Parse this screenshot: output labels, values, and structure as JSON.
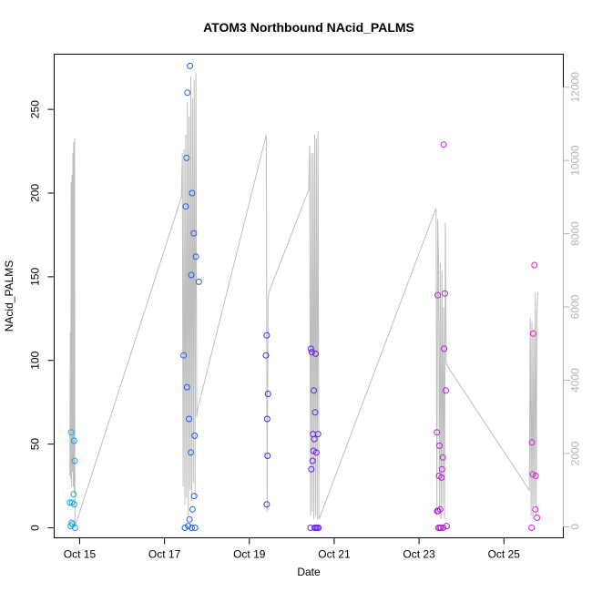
{
  "chart_data": {
    "type": "scatter",
    "title": "ATOM3 Northbound NAcid_PALMS",
    "xlabel": "Date",
    "ylabel": "NAcid_PALMS",
    "xlim": [
      14.4,
      26.4
    ],
    "ylim": [
      -6,
      283
    ],
    "y2lim": [
      -300,
      12900
    ],
    "x_ticks": [
      {
        "value": 15,
        "label": "Oct 15"
      },
      {
        "value": 17,
        "label": "Oct 17"
      },
      {
        "value": 19,
        "label": "Oct 19"
      },
      {
        "value": 21,
        "label": "Oct 21"
      },
      {
        "value": 23,
        "label": "Oct 23"
      },
      {
        "value": 25,
        "label": "Oct 25"
      }
    ],
    "y_ticks": [
      0,
      50,
      100,
      150,
      200,
      250
    ],
    "y2_ticks": [
      0,
      2000,
      4000,
      6000,
      8000,
      10000,
      12000
    ],
    "grid": false,
    "points": [
      {
        "x": 14.77,
        "y": 15,
        "color": "#1fa6e0"
      },
      {
        "x": 14.79,
        "y": 1,
        "color": "#1fa6e0"
      },
      {
        "x": 14.8,
        "y": 57,
        "color": "#1fa6e0"
      },
      {
        "x": 14.81,
        "y": 3,
        "color": "#1fa6e0"
      },
      {
        "x": 14.82,
        "y": 15,
        "color": "#1fa6e0"
      },
      {
        "x": 14.83,
        "y": 2,
        "color": "#1fa6e0"
      },
      {
        "x": 14.86,
        "y": 20,
        "color": "#1fa6e0"
      },
      {
        "x": 14.87,
        "y": 14,
        "color": "#1fa6e0"
      },
      {
        "x": 14.87,
        "y": 52,
        "color": "#1fa6e0"
      },
      {
        "x": 14.88,
        "y": 40,
        "color": "#1fa6e0"
      },
      {
        "x": 14.89,
        "y": 0,
        "color": "#1fa6e0"
      },
      {
        "x": 17.45,
        "y": 103,
        "color": "#1f5fe6"
      },
      {
        "x": 17.48,
        "y": 0,
        "color": "#1f5fe6"
      },
      {
        "x": 17.5,
        "y": 192,
        "color": "#1f5fe6"
      },
      {
        "x": 17.52,
        "y": 221,
        "color": "#1f5fe6"
      },
      {
        "x": 17.53,
        "y": 84,
        "color": "#1f5fe6"
      },
      {
        "x": 17.54,
        "y": 260,
        "color": "#1f5fe6"
      },
      {
        "x": 17.56,
        "y": 1,
        "color": "#1f5fe6"
      },
      {
        "x": 17.58,
        "y": 65,
        "color": "#1f5fe6"
      },
      {
        "x": 17.59,
        "y": 5,
        "color": "#1f5fe6"
      },
      {
        "x": 17.6,
        "y": 276,
        "color": "#1f5fe6"
      },
      {
        "x": 17.62,
        "y": 45,
        "color": "#1f5fe6"
      },
      {
        "x": 17.63,
        "y": 151,
        "color": "#1f5fe6"
      },
      {
        "x": 17.64,
        "y": 0,
        "color": "#1f5fe6"
      },
      {
        "x": 17.65,
        "y": 200,
        "color": "#1f5fe6"
      },
      {
        "x": 17.66,
        "y": 11,
        "color": "#1f5fe6"
      },
      {
        "x": 17.69,
        "y": 176,
        "color": "#1f5fe6"
      },
      {
        "x": 17.7,
        "y": 19,
        "color": "#1f5fe6"
      },
      {
        "x": 17.71,
        "y": 55,
        "color": "#1f5fe6"
      },
      {
        "x": 17.72,
        "y": 0,
        "color": "#1f5fe6"
      },
      {
        "x": 17.74,
        "y": 162,
        "color": "#1f5fe6"
      },
      {
        "x": 17.81,
        "y": 147,
        "color": "#1f5fe6"
      },
      {
        "x": 19.39,
        "y": 103,
        "color": "#3a2ee0"
      },
      {
        "x": 19.41,
        "y": 115,
        "color": "#3a2ee0"
      },
      {
        "x": 19.41,
        "y": 14,
        "color": "#3a2ee0"
      },
      {
        "x": 19.42,
        "y": 65,
        "color": "#3a2ee0"
      },
      {
        "x": 19.43,
        "y": 43,
        "color": "#3a2ee0"
      },
      {
        "x": 19.44,
        "y": 80,
        "color": "#3a2ee0"
      },
      {
        "x": 20.44,
        "y": 0,
        "color": "#6a20e0"
      },
      {
        "x": 20.45,
        "y": 107,
        "color": "#6a20e0"
      },
      {
        "x": 20.46,
        "y": 35,
        "color": "#6a20e0"
      },
      {
        "x": 20.47,
        "y": 105,
        "color": "#6a20e0"
      },
      {
        "x": 20.49,
        "y": 40,
        "color": "#6a20e0"
      },
      {
        "x": 20.5,
        "y": 56,
        "color": "#6a20e0"
      },
      {
        "x": 20.51,
        "y": 46,
        "color": "#6a20e0"
      },
      {
        "x": 20.52,
        "y": 82,
        "color": "#6a20e0"
      },
      {
        "x": 20.53,
        "y": 53,
        "color": "#6a20e0"
      },
      {
        "x": 20.54,
        "y": 0,
        "color": "#6a20e0"
      },
      {
        "x": 20.55,
        "y": 69,
        "color": "#6a20e0"
      },
      {
        "x": 20.56,
        "y": 104,
        "color": "#6a20e0"
      },
      {
        "x": 20.57,
        "y": 0,
        "color": "#6a20e0"
      },
      {
        "x": 20.58,
        "y": 45,
        "color": "#6a20e0"
      },
      {
        "x": 20.6,
        "y": 0,
        "color": "#6a20e0"
      },
      {
        "x": 20.62,
        "y": 56,
        "color": "#6a20e0"
      },
      {
        "x": 20.63,
        "y": 0,
        "color": "#6a20e0"
      },
      {
        "x": 23.42,
        "y": 57,
        "color": "#b51ed8"
      },
      {
        "x": 23.43,
        "y": 10,
        "color": "#b51ed8"
      },
      {
        "x": 23.44,
        "y": 139,
        "color": "#b51ed8"
      },
      {
        "x": 23.45,
        "y": 10,
        "color": "#b51ed8"
      },
      {
        "x": 23.46,
        "y": 0,
        "color": "#b51ed8"
      },
      {
        "x": 23.47,
        "y": 31,
        "color": "#b51ed8"
      },
      {
        "x": 23.48,
        "y": 49,
        "color": "#b51ed8"
      },
      {
        "x": 23.49,
        "y": 0,
        "color": "#b51ed8"
      },
      {
        "x": 23.5,
        "y": 11,
        "color": "#b51ed8"
      },
      {
        "x": 23.52,
        "y": 0,
        "color": "#b51ed8"
      },
      {
        "x": 23.53,
        "y": 30,
        "color": "#b51ed8"
      },
      {
        "x": 23.54,
        "y": 35,
        "color": "#b51ed8"
      },
      {
        "x": 23.56,
        "y": 42,
        "color": "#b51ed8"
      },
      {
        "x": 23.57,
        "y": 0,
        "color": "#b51ed8"
      },
      {
        "x": 23.58,
        "y": 229,
        "color": "#b51ed8"
      },
      {
        "x": 23.59,
        "y": 107,
        "color": "#b51ed8"
      },
      {
        "x": 23.61,
        "y": 140,
        "color": "#b51ed8"
      },
      {
        "x": 23.63,
        "y": 82,
        "color": "#b51ed8"
      },
      {
        "x": 23.65,
        "y": 1,
        "color": "#b51ed8"
      },
      {
        "x": 25.65,
        "y": 0,
        "color": "#e81ccf"
      },
      {
        "x": 25.66,
        "y": 51,
        "color": "#e81ccf"
      },
      {
        "x": 25.68,
        "y": 32,
        "color": "#e81ccf"
      },
      {
        "x": 25.69,
        "y": 116,
        "color": "#e81ccf"
      },
      {
        "x": 25.72,
        "y": 157,
        "color": "#e81ccf"
      },
      {
        "x": 25.74,
        "y": 11,
        "color": "#e81ccf"
      },
      {
        "x": 25.75,
        "y": 31,
        "color": "#e81ccf"
      },
      {
        "x": 25.78,
        "y": 6,
        "color": "#e81ccf"
      }
    ],
    "line_series": {
      "axis": "right",
      "color": "#bebebe",
      "x": [
        14.77,
        14.78,
        14.79,
        14.8,
        14.81,
        14.82,
        14.83,
        14.84,
        14.85,
        14.86,
        14.87,
        14.88,
        14.89,
        17.4,
        17.42,
        17.44,
        17.46,
        17.48,
        17.5,
        17.52,
        17.54,
        17.56,
        17.58,
        17.6,
        17.62,
        17.64,
        17.66,
        17.68,
        17.7,
        17.72,
        17.74,
        17.76,
        17.78,
        17.8,
        19.4,
        19.42,
        19.44,
        19.46,
        20.4,
        20.42,
        20.44,
        20.46,
        20.48,
        20.5,
        20.52,
        20.54,
        20.56,
        20.58,
        20.6,
        20.62,
        20.64,
        23.4,
        23.42,
        23.44,
        23.46,
        23.48,
        23.5,
        23.52,
        23.54,
        23.56,
        23.58,
        23.6,
        23.62,
        23.64,
        23.66,
        25.6,
        25.62,
        25.64,
        25.66,
        25.68,
        25.7,
        25.72,
        25.74,
        25.76,
        25.78,
        25.8
      ],
      "y": [
        1400,
        5300,
        1300,
        9400,
        1100,
        9600,
        1500,
        10200,
        1100,
        10500,
        900,
        10600,
        0,
        9000,
        10200,
        1100,
        10300,
        600,
        10700,
        800,
        11600,
        300,
        11200,
        1000,
        12300,
        700,
        11700,
        1200,
        12200,
        800,
        12400,
        3000,
        3200,
        3300,
        10700,
        400,
        6200,
        6400,
        9200,
        10400,
        300,
        10200,
        400,
        10200,
        200,
        10700,
        300,
        10600,
        200,
        10800,
        200,
        8700,
        300,
        8400,
        7300,
        500,
        7200,
        200,
        7000,
        600,
        6000,
        200,
        8300,
        4500,
        4400,
        1000,
        5700,
        300,
        5600,
        200,
        5400,
        600,
        6400,
        300,
        5900,
        6400
      ]
    }
  }
}
